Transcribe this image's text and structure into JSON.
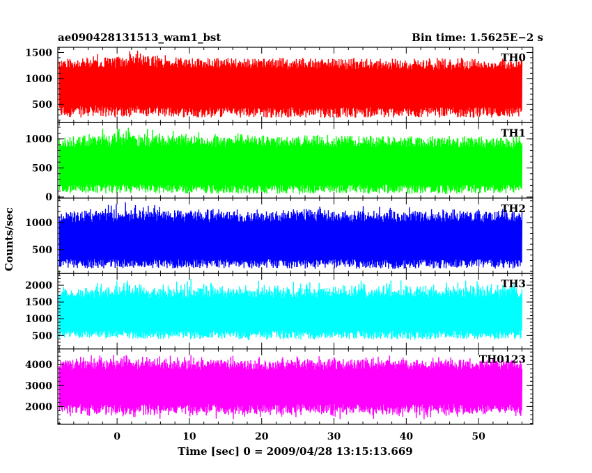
{
  "header": {
    "left_title": "ae090428131513_wam1_bst",
    "right_title": "Bin time: 1.5625E−2 s"
  },
  "axes": {
    "ylabel": "Counts/sec",
    "xlabel": "Time [sec] 0 = 2009/04/28 13:15:13.669"
  },
  "chart_data": {
    "type": "line",
    "title": "ae090428131513_wam1_bst",
    "bin_time": "1.5625E−2 s",
    "xlabel": "Time [sec] 0 = 2009/04/28 13:15:13.669",
    "ylabel": "Counts/sec",
    "xlim": [
      -8.2,
      57.5
    ],
    "x_data_range": [
      -8.0,
      56.0
    ],
    "x_ticks": [
      0,
      10,
      20,
      30,
      40,
      50
    ],
    "x_tick_labels": [
      "0",
      "10",
      "20",
      "30",
      "40",
      "50"
    ],
    "grid": false,
    "panels": [
      {
        "name": "TH0",
        "color": "#ff0000",
        "ylim": [
          150,
          1600
        ],
        "ticks": [
          500,
          1000,
          1500
        ],
        "tick_labels": [
          "500",
          "1000",
          "1500"
        ],
        "mean": 820,
        "typical_min": 250,
        "typical_max": 1400,
        "envelope": [
          {
            "x": -8,
            "max": 1350,
            "min": 280
          },
          {
            "x": 0,
            "max": 1550,
            "min": 330
          },
          {
            "x": 2,
            "max": 1600,
            "min": 300
          },
          {
            "x": 10,
            "max": 1400,
            "min": 250
          },
          {
            "x": 20,
            "max": 1380,
            "min": 250
          },
          {
            "x": 30,
            "max": 1350,
            "min": 240
          },
          {
            "x": 40,
            "max": 1320,
            "min": 240
          },
          {
            "x": 56,
            "max": 1320,
            "min": 250
          }
        ]
      },
      {
        "name": "TH1",
        "color": "#00ff00",
        "ylim": [
          -20,
          1280
        ],
        "ticks": [
          0,
          500,
          1000
        ],
        "tick_labels": [
          "0",
          "500",
          "1000"
        ],
        "mean": 500,
        "typical_min": 60,
        "typical_max": 1050,
        "envelope": [
          {
            "x": -8,
            "max": 1000,
            "min": 60
          },
          {
            "x": 0,
            "max": 1250,
            "min": 80
          },
          {
            "x": 10,
            "max": 1150,
            "min": 50
          },
          {
            "x": 20,
            "max": 1100,
            "min": 40
          },
          {
            "x": 30,
            "max": 1100,
            "min": 40
          },
          {
            "x": 40,
            "max": 1050,
            "min": 40
          },
          {
            "x": 56,
            "max": 1000,
            "min": 50
          }
        ]
      },
      {
        "name": "TH2",
        "color": "#0000ff",
        "ylim": [
          60,
          1450
        ],
        "ticks": [
          500,
          1000
        ],
        "tick_labels": [
          "500",
          "1000"
        ],
        "mean": 650,
        "typical_min": 150,
        "typical_max": 1200,
        "envelope": [
          {
            "x": -8,
            "max": 1200,
            "min": 200
          },
          {
            "x": 0,
            "max": 1420,
            "min": 180
          },
          {
            "x": 10,
            "max": 1300,
            "min": 150
          },
          {
            "x": 20,
            "max": 1300,
            "min": 150
          },
          {
            "x": 30,
            "max": 1350,
            "min": 130
          },
          {
            "x": 40,
            "max": 1300,
            "min": 140
          },
          {
            "x": 56,
            "max": 1250,
            "min": 150
          }
        ]
      },
      {
        "name": "TH3",
        "color": "#00ffff",
        "ylim": [
          100,
          2350
        ],
        "ticks": [
          500,
          1000,
          1500,
          2000
        ],
        "tick_labels": [
          "500",
          "1000",
          "1500",
          "2000"
        ],
        "mean": 1100,
        "typical_min": 400,
        "typical_max": 1900,
        "envelope": [
          {
            "x": -8,
            "max": 2000,
            "min": 450
          },
          {
            "x": 0,
            "max": 2250,
            "min": 400
          },
          {
            "x": 10,
            "max": 2200,
            "min": 380
          },
          {
            "x": 20,
            "max": 2150,
            "min": 350
          },
          {
            "x": 30,
            "max": 2150,
            "min": 350
          },
          {
            "x": 40,
            "max": 2200,
            "min": 350
          },
          {
            "x": 56,
            "max": 2150,
            "min": 380
          }
        ]
      },
      {
        "name": "TH0123",
        "color": "#ff00ff",
        "ylim": [
          1150,
          4750
        ],
        "ticks": [
          2000,
          3000,
          4000
        ],
        "tick_labels": [
          "2000",
          "3000",
          "4000"
        ],
        "mean": 2900,
        "typical_min": 1700,
        "typical_max": 4200,
        "envelope": [
          {
            "x": -8,
            "max": 4300,
            "min": 1500
          },
          {
            "x": 0,
            "max": 4650,
            "min": 1450
          },
          {
            "x": 10,
            "max": 4550,
            "min": 1350
          },
          {
            "x": 20,
            "max": 4500,
            "min": 1350
          },
          {
            "x": 30,
            "max": 4550,
            "min": 1300
          },
          {
            "x": 40,
            "max": 4450,
            "min": 1350
          },
          {
            "x": 56,
            "max": 4400,
            "min": 1400
          }
        ]
      }
    ]
  }
}
